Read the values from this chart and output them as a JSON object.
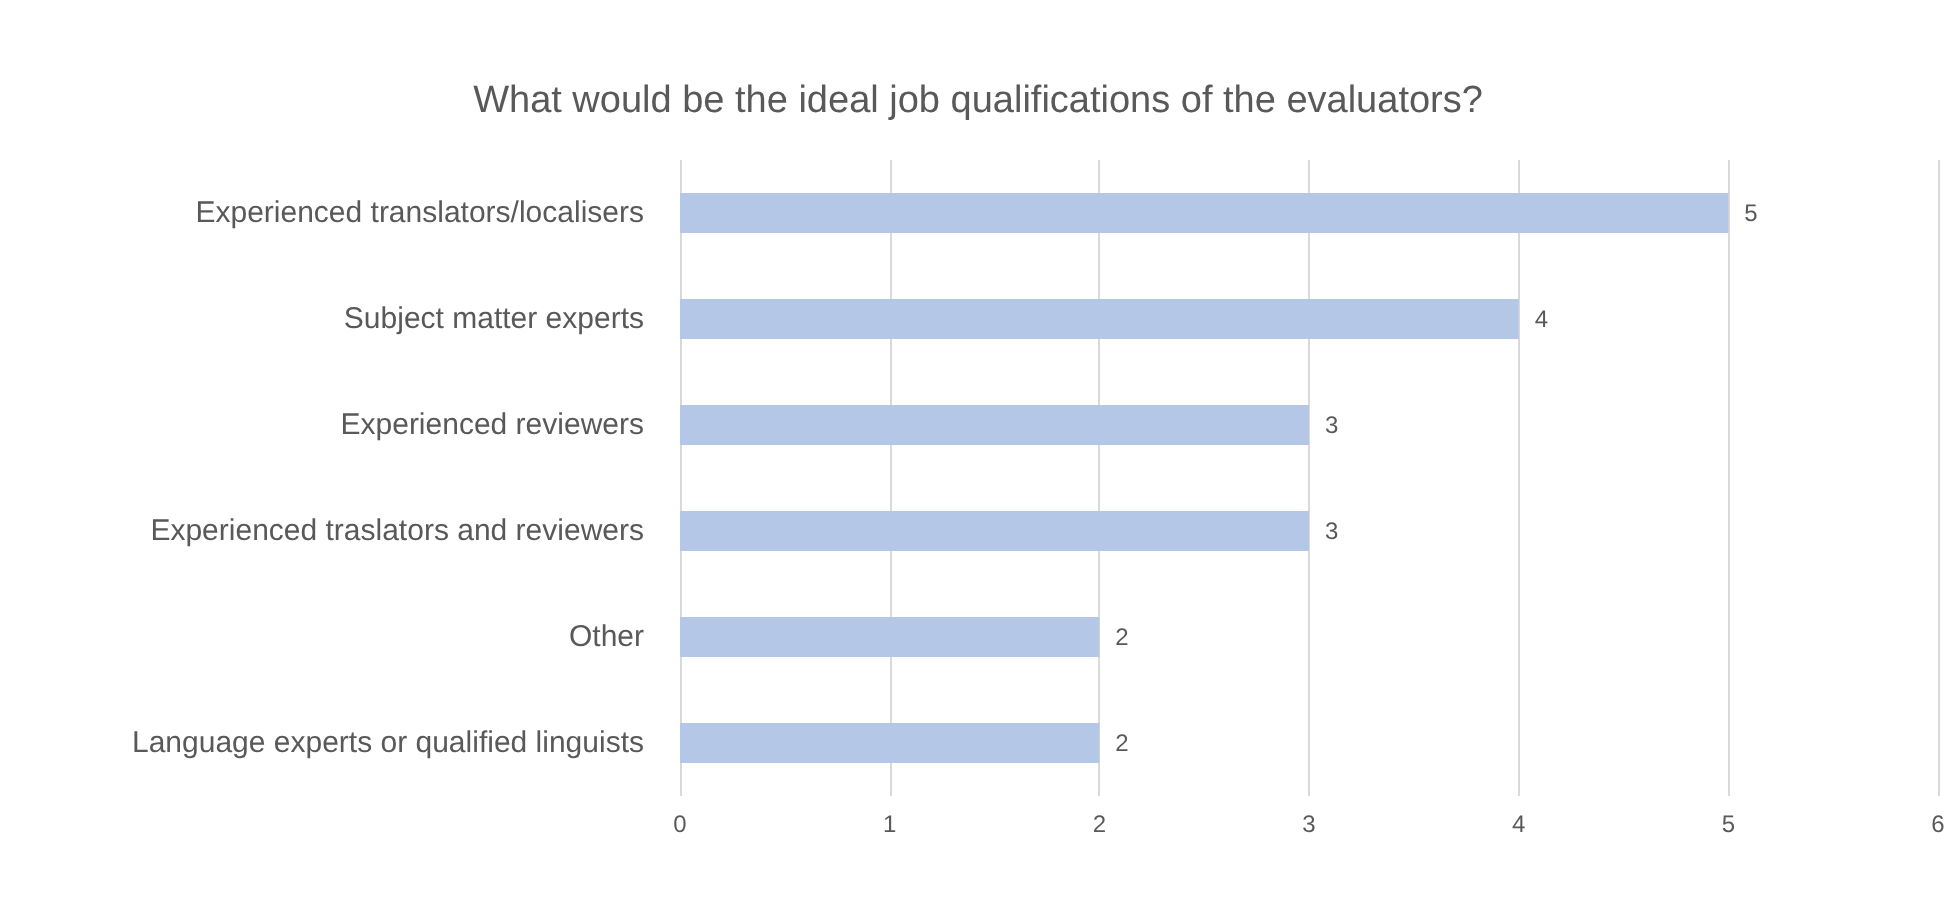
{
  "chart_data": {
    "type": "bar",
    "orientation": "horizontal",
    "title": "What would be the ideal job qualifications of the evaluators?",
    "categories": [
      "Experienced translators/localisers",
      "Subject matter experts",
      "Experienced reviewers",
      "Experienced traslators and reviewers",
      "Other",
      "Language experts or qualified linguists"
    ],
    "values": [
      5,
      4,
      3,
      3,
      2,
      2
    ],
    "color": "#b4c7e7",
    "xlim": [
      0,
      6
    ],
    "xticks": [
      0,
      1,
      2,
      3,
      4,
      5,
      6
    ],
    "grid": "x",
    "data_labels": true
  }
}
